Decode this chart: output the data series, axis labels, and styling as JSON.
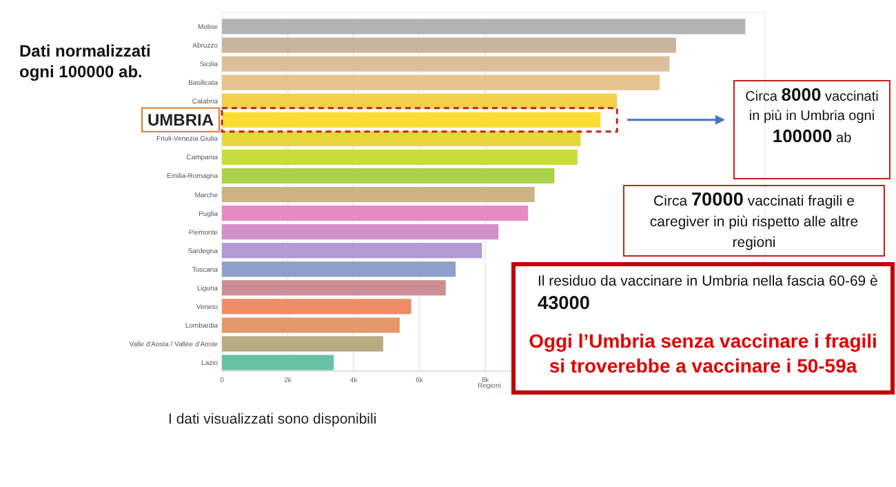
{
  "chart_data": {
    "type": "bar",
    "orientation": "horizontal",
    "categories": [
      "Molise",
      "Abruzzo",
      "Sicilia",
      "Basilicata",
      "Calabria",
      null,
      "Friuli-Venezia Giulia",
      "Campania",
      "Emilia-Romagna",
      "Marche",
      "Puglia",
      "Piemonte",
      "Sardegna",
      "Toscana",
      "Liguria",
      "Veneto",
      "Lombardia",
      "Valle d'Aosta / Vallée d'Aoste",
      "Lazio"
    ],
    "values": [
      15.9,
      13.8,
      13.6,
      13.3,
      12.0,
      11.5,
      10.9,
      10.8,
      10.1,
      9.5,
      9.3,
      8.4,
      7.9,
      7.1,
      6.8,
      5.75,
      5.4,
      4.9,
      3.4
    ],
    "colors": [
      "#b3b3b3",
      "#c9b49e",
      "#dfbf9b",
      "#e6c48f",
      "#f4cf4a",
      "#fddc32",
      "#e8d73c",
      "#c8dc3c",
      "#a9d24a",
      "#cdb384",
      "#e78ac3",
      "#d18fc8",
      "#b29ad3",
      "#8da0cb",
      "#cc8d95",
      "#f08d68",
      "#e6986a",
      "#b5ac83",
      "#66c2a5"
    ],
    "xlim": [
      0,
      16.5
    ],
    "xticks": [
      {
        "value": 0,
        "label": "0"
      },
      {
        "value": 2,
        "label": "2k"
      },
      {
        "value": 4,
        "label": "4k"
      },
      {
        "value": 6,
        "label": "6k"
      },
      {
        "value": 8,
        "label": "8k"
      }
    ],
    "xlabel": "Regioni",
    "grid": "x",
    "annotations": [
      "Dati normalizzati ogni 100000 ab.",
      "UMBRIA",
      "Circa 8000 vaccinati in più in Umbria ogni 100000 ab",
      "Circa 70000 vaccinati fragili e caregiver in più  rispetto alle altre regioni",
      "Il residuo da vaccinare  in Umbria nella fascia 60-69 è 43000",
      "Oggi l’Umbria senza vaccinare i fragili si troverebbe a vaccinare i 50-59a",
      "I dati visualizzati sono disponibili"
    ]
  }
}
